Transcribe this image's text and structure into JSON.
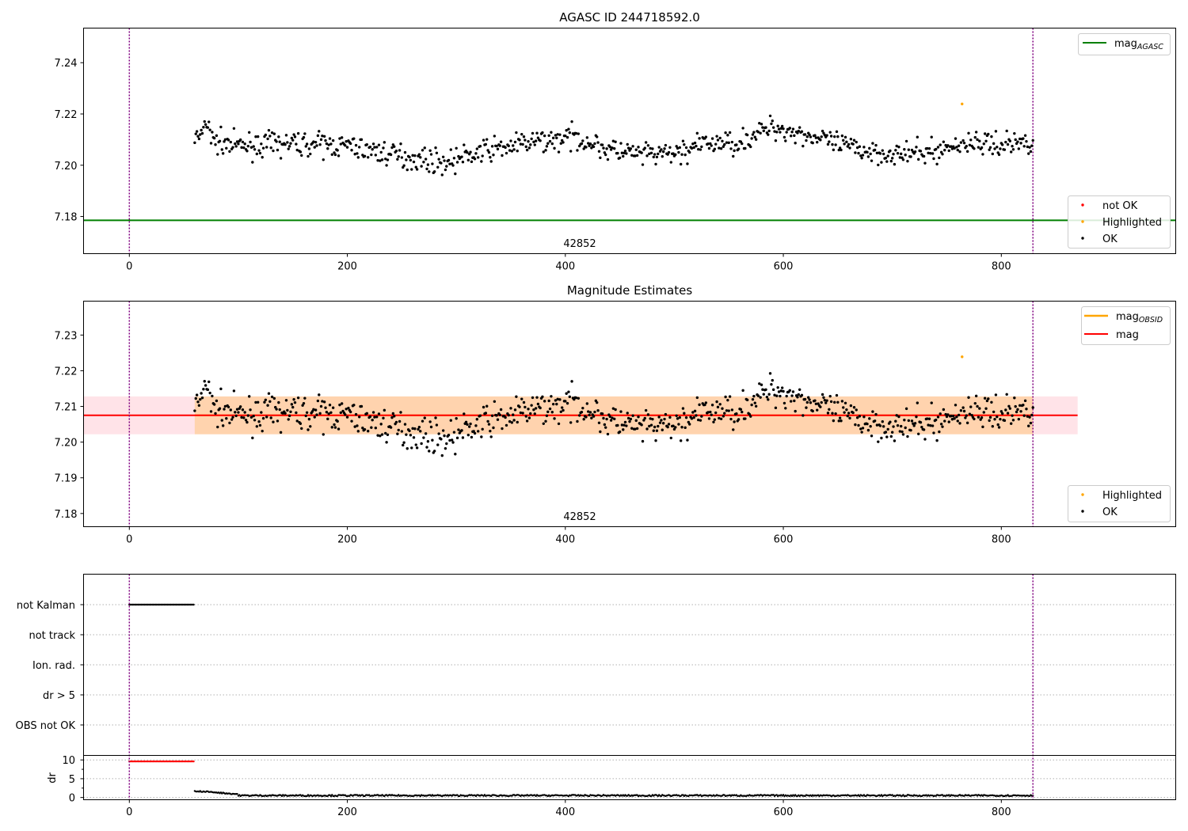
{
  "chart_data": [
    {
      "id": "agasc",
      "type": "scatter",
      "title": "AGASC ID 244718592.0",
      "xlim": [
        -42,
        960
      ],
      "ylim": [
        7.1655,
        7.2535
      ],
      "xticks": [
        0,
        200,
        400,
        600,
        800
      ],
      "yticks": [
        7.18,
        7.2,
        7.22,
        7.24
      ],
      "ytick_labels": [
        "7.18",
        "7.20",
        "7.22",
        "7.24"
      ],
      "grid": false,
      "obs_boundaries": [
        0,
        829
      ],
      "obsid_label": {
        "x": 415,
        "text": "42852"
      },
      "hlines": [
        {
          "name": "mag",
          "subscript": "AGASC",
          "y": 7.1785,
          "x_range": [
            -42,
            960
          ],
          "color": "#008000"
        }
      ],
      "bands": [],
      "highlighted": [
        {
          "x": 764,
          "y": 7.2239
        }
      ],
      "not_ok": [],
      "legend_lines_position": "upper right",
      "legend_points_position": "lower right",
      "legend_points": [
        {
          "label": "not OK",
          "color": "#ff0000"
        },
        {
          "label": "Highlighted",
          "color": "#ffa500"
        },
        {
          "label": "OK",
          "color": "#000000"
        }
      ]
    },
    {
      "id": "estimates",
      "type": "scatter",
      "title": "Magnitude Estimates",
      "xlim": [
        -42,
        960
      ],
      "ylim": [
        7.1763,
        7.2395
      ],
      "xticks": [
        0,
        200,
        400,
        600,
        800
      ],
      "yticks": [
        7.18,
        7.19,
        7.2,
        7.21,
        7.22,
        7.23
      ],
      "ytick_labels": [
        "7.18",
        "7.19",
        "7.20",
        "7.21",
        "7.22",
        "7.23"
      ],
      "grid": false,
      "obs_boundaries": [
        0,
        829
      ],
      "obsid_label": {
        "x": 415,
        "text": "42852"
      },
      "hlines": [
        {
          "name": "mag",
          "subscript": "OBSID",
          "y": 7.2075,
          "x_range": [
            60,
            829
          ],
          "color": "#ffa500"
        },
        {
          "name": "mag",
          "subscript": "",
          "y": 7.2075,
          "x_range": [
            -42,
            870
          ],
          "color": "#ff0000"
        }
      ],
      "bands": [
        {
          "y": [
            7.2022,
            7.2128
          ],
          "x_range": [
            -42,
            870
          ],
          "color": "#ffc0cb",
          "opacity": 0.45
        },
        {
          "y": [
            7.2022,
            7.2128
          ],
          "x_range": [
            60,
            829
          ],
          "color": "#ffa500",
          "opacity": 0.25
        }
      ],
      "highlighted": [
        {
          "x": 764,
          "y": 7.2239
        }
      ],
      "not_ok": [],
      "legend_lines_position": "upper right",
      "legend_points_position": "lower right",
      "legend_points": [
        {
          "label": "Highlighted",
          "color": "#ffa500"
        },
        {
          "label": "OK",
          "color": "#000000"
        }
      ]
    },
    {
      "id": "flags",
      "type": "scatter",
      "xlim": [
        -42,
        960
      ],
      "categories": [
        "not Kalman",
        "not track",
        "Ion. rad.",
        "dr > 5",
        "OBS not OK"
      ],
      "flag_points": [
        {
          "category": "not Kalman",
          "x_range": [
            0,
            59
          ]
        }
      ],
      "grid": true,
      "obs_boundaries": [
        0,
        829
      ]
    },
    {
      "id": "dr",
      "type": "scatter",
      "ylabel": "dr",
      "xlim": [
        -42,
        960
      ],
      "ylim": [
        -0.6,
        11.2
      ],
      "xticks": [
        0,
        200,
        400,
        600,
        800
      ],
      "yticks": [
        0,
        5,
        10
      ],
      "ytick_labels": [
        "0",
        "5",
        "10"
      ],
      "grid": true,
      "obs_boundaries": [
        0,
        829
      ],
      "clipped": {
        "x_range": [
          0,
          59
        ],
        "y": 9.6,
        "color": "#ff0000"
      },
      "tracked_start": 60,
      "tracked_end": 829
    }
  ]
}
